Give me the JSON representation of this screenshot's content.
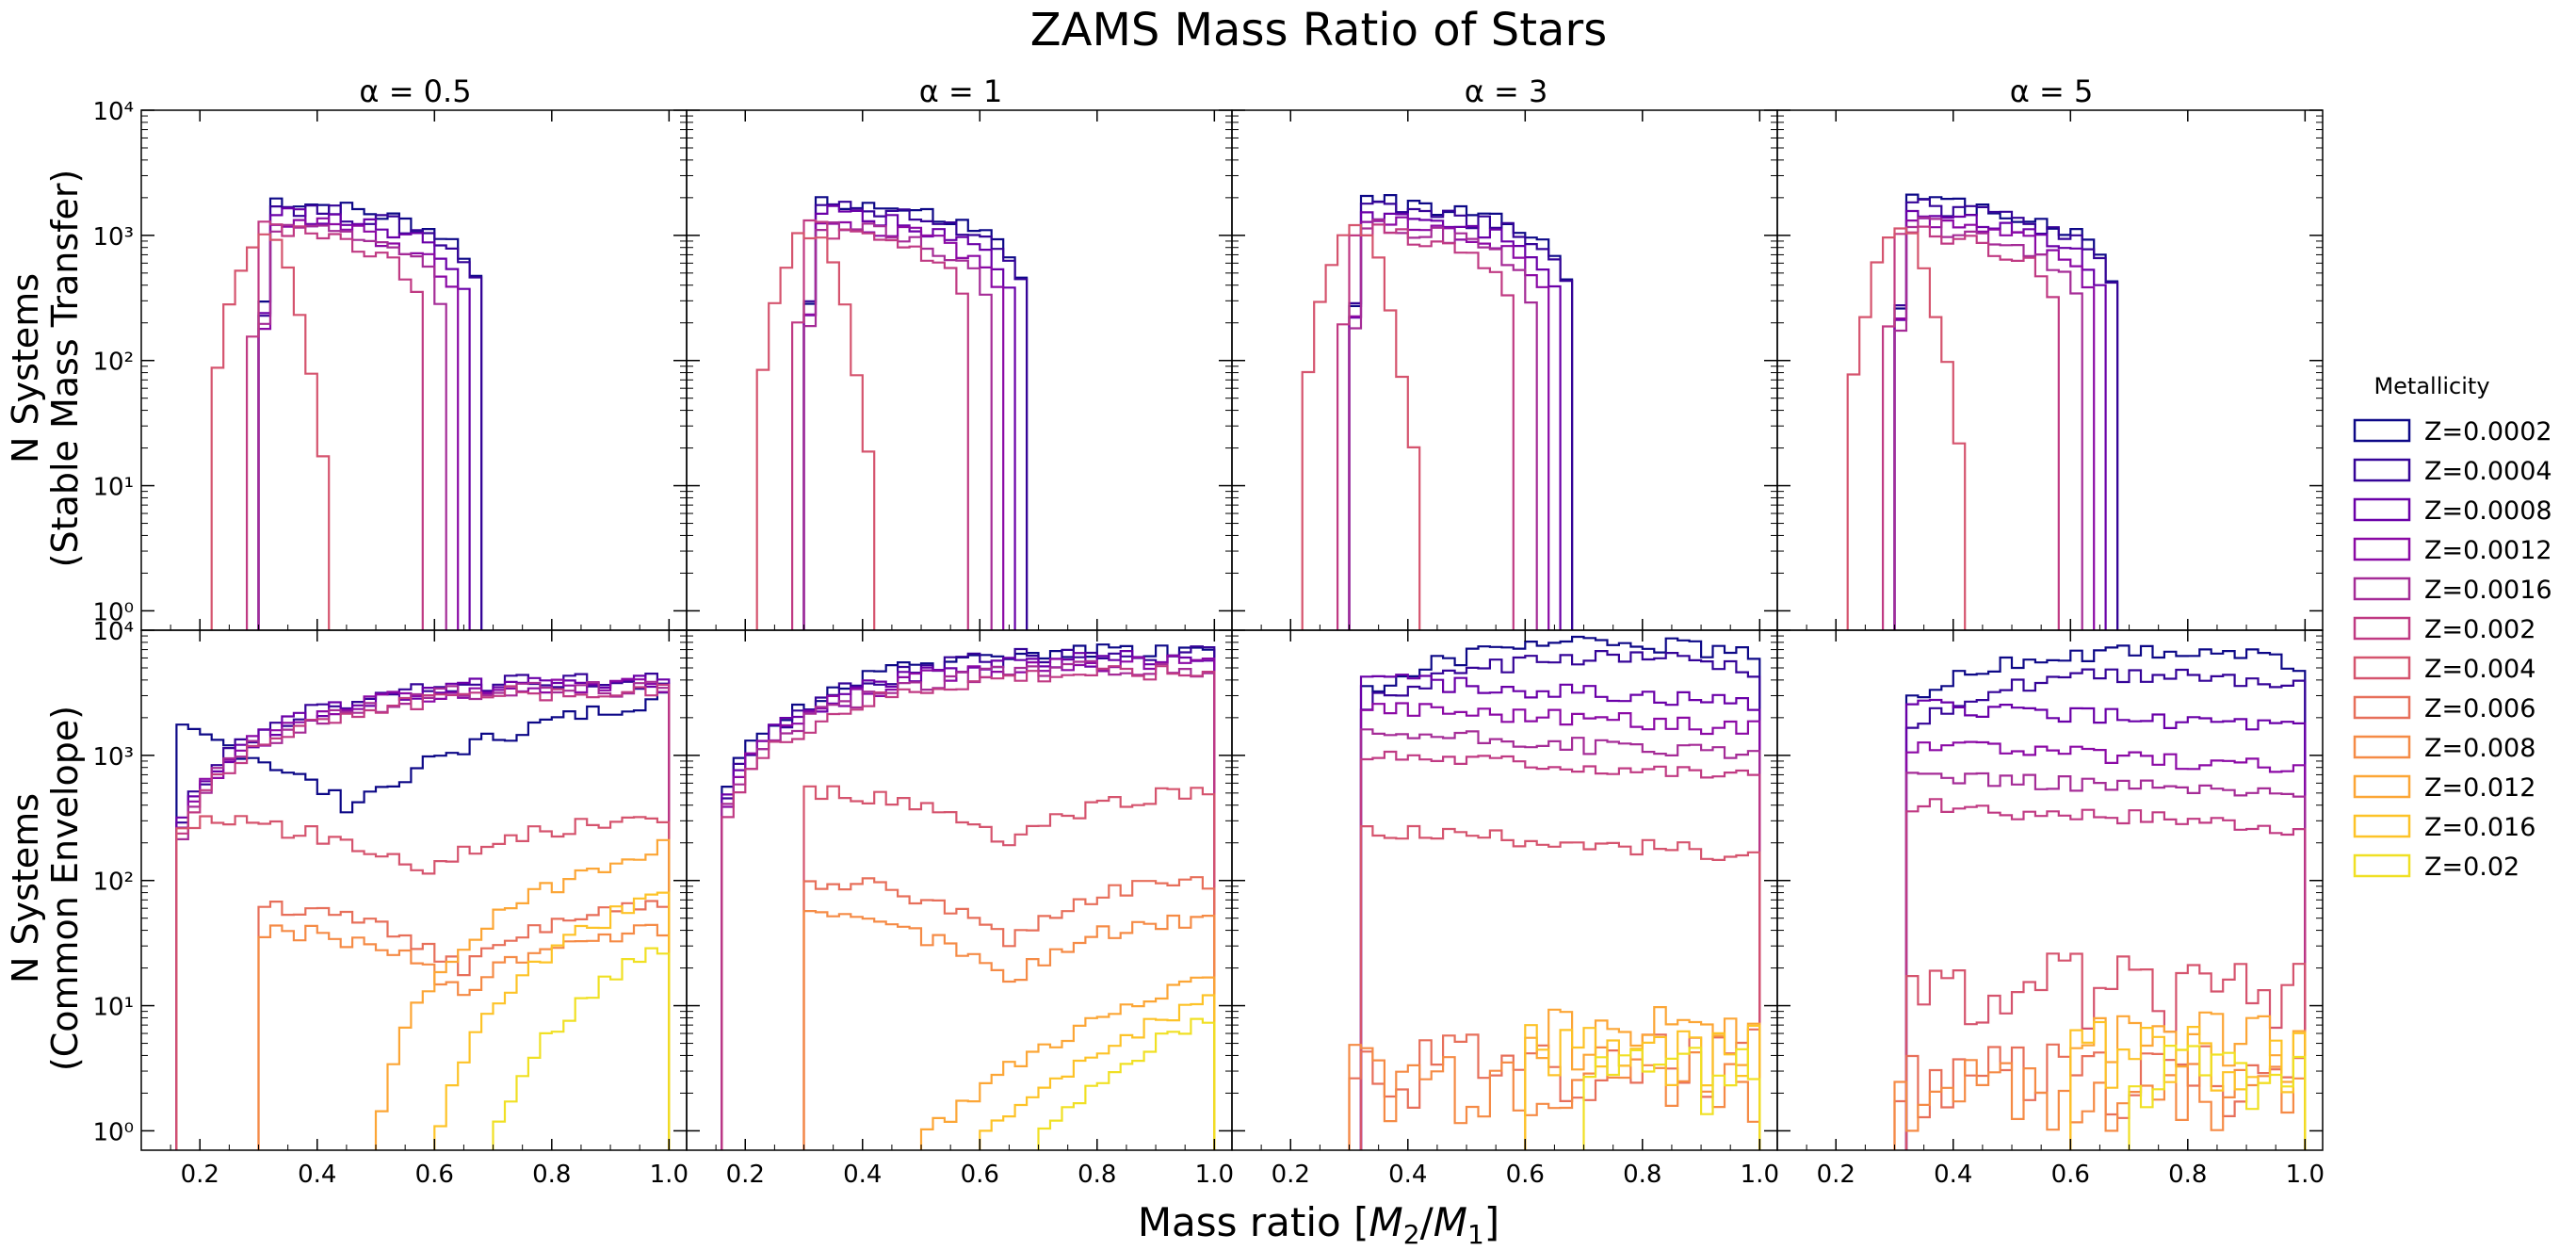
{
  "chart_data": {
    "type": "histogram-step",
    "title": "ZAMS Mass Ratio of Stars",
    "xlabel": "Mass ratio [M₂/M₁]",
    "xlabel_parts": {
      "prefix": "Mass ratio [",
      "m2": "M",
      "sub2": "2",
      "slash": "/",
      "m1": "M",
      "sub1": "1",
      "suffix": "]"
    },
    "row_labels": [
      {
        "line1": "N Systems",
        "line2": "(Stable Mass Transfer)"
      },
      {
        "line1": "N Systems",
        "line2": "(Common Envelope)"
      }
    ],
    "columns": [
      "α = 0.5",
      "α = 1",
      "α = 3",
      "α = 5"
    ],
    "x_range": [
      0.1,
      1.03
    ],
    "x_ticks": [
      "0.2",
      "0.4",
      "0.6",
      "0.8",
      "1.0"
    ],
    "y_scale": "log",
    "y_range": [
      0.7,
      10000
    ],
    "y_ticks": [
      "10⁰",
      "10¹",
      "10²",
      "10³",
      "10⁴"
    ],
    "legend": {
      "title": "Metallicity",
      "placement": "right",
      "entries": [
        "Z=0.0002",
        "Z=0.0004",
        "Z=0.0008",
        "Z=0.0012",
        "Z=0.0016",
        "Z=0.002",
        "Z=0.004",
        "Z=0.006",
        "Z=0.008",
        "Z=0.012",
        "Z=0.016",
        "Z=0.02"
      ],
      "colors": [
        "#0d0887",
        "#350498",
        "#6a00a8",
        "#8b0aa5",
        "#a52c97",
        "#c03a83",
        "#d5546e",
        "#e76f5a",
        "#f58b46",
        "#fca636",
        "#fdc328",
        "#f0e024"
      ]
    },
    "bin_width": 0.02,
    "bins_start": 0.14,
    "panels": [
      {
        "row": 0,
        "col": 0,
        "series": [
          {
            "name": "Z=0.0002",
            "start": 0.3,
            "shape": "stable",
            "peak": 2000,
            "end": 0.68
          },
          {
            "name": "Z=0.0004",
            "start": 0.3,
            "shape": "stable",
            "peak": 1800,
            "end": 0.68
          },
          {
            "name": "Z=0.0008",
            "start": 0.3,
            "shape": "stable",
            "peak": 1600,
            "end": 0.66
          },
          {
            "name": "Z=0.0012",
            "start": 0.3,
            "shape": "stable",
            "peak": 1400,
            "end": 0.64
          },
          {
            "name": "Z=0.0016",
            "start": 0.3,
            "shape": "stable",
            "peak": 1300,
            "end": 0.62
          },
          {
            "name": "Z=0.002",
            "start": 0.28,
            "shape": "stable",
            "peak": 1200,
            "end": 0.58
          },
          {
            "name": "Z=0.004",
            "start": 0.22,
            "shape": "early",
            "peak": 1100,
            "end": 0.42
          }
        ]
      },
      {
        "row": 0,
        "col": 1,
        "series": [
          {
            "name": "Z=0.0002",
            "start": 0.3,
            "shape": "stable",
            "peak": 2000,
            "end": 0.68
          },
          {
            "name": "Z=0.0004",
            "start": 0.3,
            "shape": "stable",
            "peak": 1800,
            "end": 0.68
          },
          {
            "name": "Z=0.0008",
            "start": 0.3,
            "shape": "stable",
            "peak": 1600,
            "end": 0.66
          },
          {
            "name": "Z=0.0012",
            "start": 0.3,
            "shape": "stable",
            "peak": 1400,
            "end": 0.64
          },
          {
            "name": "Z=0.0016",
            "start": 0.3,
            "shape": "stable",
            "peak": 1300,
            "end": 0.62
          },
          {
            "name": "Z=0.002",
            "start": 0.28,
            "shape": "stable",
            "peak": 1200,
            "end": 0.58
          },
          {
            "name": "Z=0.004",
            "start": 0.22,
            "shape": "early",
            "peak": 1100,
            "end": 0.42
          }
        ]
      },
      {
        "row": 0,
        "col": 2,
        "series": [
          {
            "name": "Z=0.0002",
            "start": 0.3,
            "shape": "stable",
            "peak": 2000,
            "end": 0.68
          },
          {
            "name": "Z=0.0004",
            "start": 0.3,
            "shape": "stable",
            "peak": 1800,
            "end": 0.68
          },
          {
            "name": "Z=0.0008",
            "start": 0.3,
            "shape": "stable",
            "peak": 1600,
            "end": 0.66
          },
          {
            "name": "Z=0.0012",
            "start": 0.3,
            "shape": "stable",
            "peak": 1400,
            "end": 0.64
          },
          {
            "name": "Z=0.0016",
            "start": 0.3,
            "shape": "stable",
            "peak": 1300,
            "end": 0.62
          },
          {
            "name": "Z=0.002",
            "start": 0.28,
            "shape": "stable",
            "peak": 1200,
            "end": 0.58
          },
          {
            "name": "Z=0.004",
            "start": 0.22,
            "shape": "early",
            "peak": 1100,
            "end": 0.42
          }
        ]
      },
      {
        "row": 0,
        "col": 3,
        "series": [
          {
            "name": "Z=0.0002",
            "start": 0.3,
            "shape": "stable",
            "peak": 2000,
            "end": 0.68
          },
          {
            "name": "Z=0.0004",
            "start": 0.3,
            "shape": "stable",
            "peak": 1800,
            "end": 0.68
          },
          {
            "name": "Z=0.0008",
            "start": 0.3,
            "shape": "stable",
            "peak": 1600,
            "end": 0.66
          },
          {
            "name": "Z=0.0012",
            "start": 0.3,
            "shape": "stable",
            "peak": 1400,
            "end": 0.64
          },
          {
            "name": "Z=0.0016",
            "start": 0.3,
            "shape": "stable",
            "peak": 1300,
            "end": 0.62
          },
          {
            "name": "Z=0.002",
            "start": 0.28,
            "shape": "stable",
            "peak": 1200,
            "end": 0.58
          },
          {
            "name": "Z=0.004",
            "start": 0.22,
            "shape": "early",
            "peak": 1100,
            "end": 0.42
          }
        ]
      },
      {
        "row": 1,
        "col": 0,
        "series": [
          {
            "name": "Z=0.0002",
            "start": 0.16,
            "shape": "ce-dip",
            "peak": 4000,
            "end": 1.0
          },
          {
            "name": "Z=0.0004",
            "start": 0.16,
            "shape": "ce-rise",
            "peak": 4000,
            "end": 1.0
          },
          {
            "name": "Z=0.0008",
            "start": 0.16,
            "shape": "ce-rise",
            "peak": 3800,
            "end": 1.0
          },
          {
            "name": "Z=0.0012",
            "start": 0.16,
            "shape": "ce-rise",
            "peak": 3600,
            "end": 1.0
          },
          {
            "name": "Z=0.0016",
            "start": 0.16,
            "shape": "ce-rise",
            "peak": 3400,
            "end": 1.0
          },
          {
            "name": "Z=0.002",
            "start": 0.16,
            "shape": "ce-rise",
            "peak": 3200,
            "end": 1.0
          },
          {
            "name": "Z=0.004",
            "start": 0.16,
            "shape": "ce-mid",
            "peak": 300,
            "end": 1.0
          },
          {
            "name": "Z=0.006",
            "start": 0.3,
            "shape": "ce-low",
            "peak": 60,
            "end": 1.0
          },
          {
            "name": "Z=0.008",
            "start": 0.3,
            "shape": "ce-low",
            "peak": 40,
            "end": 1.0
          },
          {
            "name": "Z=0.012",
            "start": 0.5,
            "shape": "ce-tail",
            "peak": 200,
            "end": 1.0
          },
          {
            "name": "Z=0.016",
            "start": 0.6,
            "shape": "ce-tail",
            "peak": 80,
            "end": 1.0
          },
          {
            "name": "Z=0.02",
            "start": 0.7,
            "shape": "ce-tail",
            "peak": 30,
            "end": 1.0
          }
        ]
      },
      {
        "row": 1,
        "col": 1,
        "series": [
          {
            "name": "Z=0.0002",
            "start": 0.16,
            "shape": "ce-rise",
            "peak": 7000,
            "end": 1.0
          },
          {
            "name": "Z=0.0004",
            "start": 0.16,
            "shape": "ce-rise",
            "peak": 6500,
            "end": 1.0
          },
          {
            "name": "Z=0.0008",
            "start": 0.16,
            "shape": "ce-rise",
            "peak": 6000,
            "end": 1.0
          },
          {
            "name": "Z=0.0012",
            "start": 0.16,
            "shape": "ce-rise",
            "peak": 5500,
            "end": 1.0
          },
          {
            "name": "Z=0.0016",
            "start": 0.16,
            "shape": "ce-rise",
            "peak": 5000,
            "end": 1.0
          },
          {
            "name": "Z=0.002",
            "start": 0.16,
            "shape": "ce-rise",
            "peak": 4500,
            "end": 1.0
          },
          {
            "name": "Z=0.004",
            "start": 0.3,
            "shape": "ce-mid",
            "peak": 500,
            "end": 1.0
          },
          {
            "name": "Z=0.006",
            "start": 0.3,
            "shape": "ce-low",
            "peak": 100,
            "end": 1.0
          },
          {
            "name": "Z=0.008",
            "start": 0.3,
            "shape": "ce-low",
            "peak": 50,
            "end": 1.0
          },
          {
            "name": "Z=0.012",
            "start": 0.5,
            "shape": "ce-tail",
            "peak": 15,
            "end": 1.0
          },
          {
            "name": "Z=0.016",
            "start": 0.6,
            "shape": "ce-tail",
            "peak": 10,
            "end": 1.0
          },
          {
            "name": "Z=0.02",
            "start": 0.7,
            "shape": "ce-tail",
            "peak": 8,
            "end": 1.0
          }
        ]
      },
      {
        "row": 1,
        "col": 2,
        "series": [
          {
            "name": "Z=0.0002",
            "start": 0.32,
            "shape": "ce-flat-up",
            "peak": 8000,
            "end": 1.0
          },
          {
            "name": "Z=0.0004",
            "start": 0.32,
            "shape": "ce-flat-up",
            "peak": 6000,
            "end": 1.0
          },
          {
            "name": "Z=0.0008",
            "start": 0.32,
            "shape": "ce-flat",
            "peak": 4000,
            "end": 1.0
          },
          {
            "name": "Z=0.0012",
            "start": 0.32,
            "shape": "ce-flat",
            "peak": 2500,
            "end": 1.0
          },
          {
            "name": "Z=0.0016",
            "start": 0.32,
            "shape": "ce-flat",
            "peak": 1500,
            "end": 1.0
          },
          {
            "name": "Z=0.002",
            "start": 0.32,
            "shape": "ce-flat",
            "peak": 1000,
            "end": 1.0
          },
          {
            "name": "Z=0.004",
            "start": 0.32,
            "shape": "ce-flat",
            "peak": 250,
            "end": 1.0
          },
          {
            "name": "Z=0.006",
            "start": 0.3,
            "shape": "ce-noise",
            "peak": 5,
            "end": 1.0
          },
          {
            "name": "Z=0.008",
            "start": 0.3,
            "shape": "ce-noise",
            "peak": 4,
            "end": 1.0
          },
          {
            "name": "Z=0.012",
            "start": 0.6,
            "shape": "ce-noise",
            "peak": 8,
            "end": 1.0
          },
          {
            "name": "Z=0.016",
            "start": 0.6,
            "shape": "ce-noise",
            "peak": 6,
            "end": 1.0
          },
          {
            "name": "Z=0.02",
            "start": 0.7,
            "shape": "ce-noise",
            "peak": 4,
            "end": 1.0
          }
        ]
      },
      {
        "row": 1,
        "col": 3,
        "series": [
          {
            "name": "Z=0.0002",
            "start": 0.32,
            "shape": "ce-flat-up",
            "peak": 7000,
            "end": 1.0
          },
          {
            "name": "Z=0.0004",
            "start": 0.32,
            "shape": "ce-flat-up",
            "peak": 4500,
            "end": 1.0
          },
          {
            "name": "Z=0.0008",
            "start": 0.32,
            "shape": "ce-flat",
            "peak": 2500,
            "end": 1.0
          },
          {
            "name": "Z=0.0012",
            "start": 0.32,
            "shape": "ce-flat",
            "peak": 1200,
            "end": 1.0
          },
          {
            "name": "Z=0.0016",
            "start": 0.32,
            "shape": "ce-flat",
            "peak": 700,
            "end": 1.0
          },
          {
            "name": "Z=0.002",
            "start": 0.32,
            "shape": "ce-flat",
            "peak": 400,
            "end": 1.0
          },
          {
            "name": "Z=0.004",
            "start": 0.32,
            "shape": "ce-noise",
            "peak": 20,
            "end": 1.0
          },
          {
            "name": "Z=0.006",
            "start": 0.3,
            "shape": "ce-noise",
            "peak": 4,
            "end": 1.0
          },
          {
            "name": "Z=0.008",
            "start": 0.3,
            "shape": "ce-noise",
            "peak": 3,
            "end": 1.0
          },
          {
            "name": "Z=0.012",
            "start": 0.6,
            "shape": "ce-noise",
            "peak": 8,
            "end": 1.0
          },
          {
            "name": "Z=0.016",
            "start": 0.6,
            "shape": "ce-noise",
            "peak": 6,
            "end": 1.0
          },
          {
            "name": "Z=0.02",
            "start": 0.7,
            "shape": "ce-noise",
            "peak": 4,
            "end": 1.0
          }
        ]
      }
    ]
  }
}
